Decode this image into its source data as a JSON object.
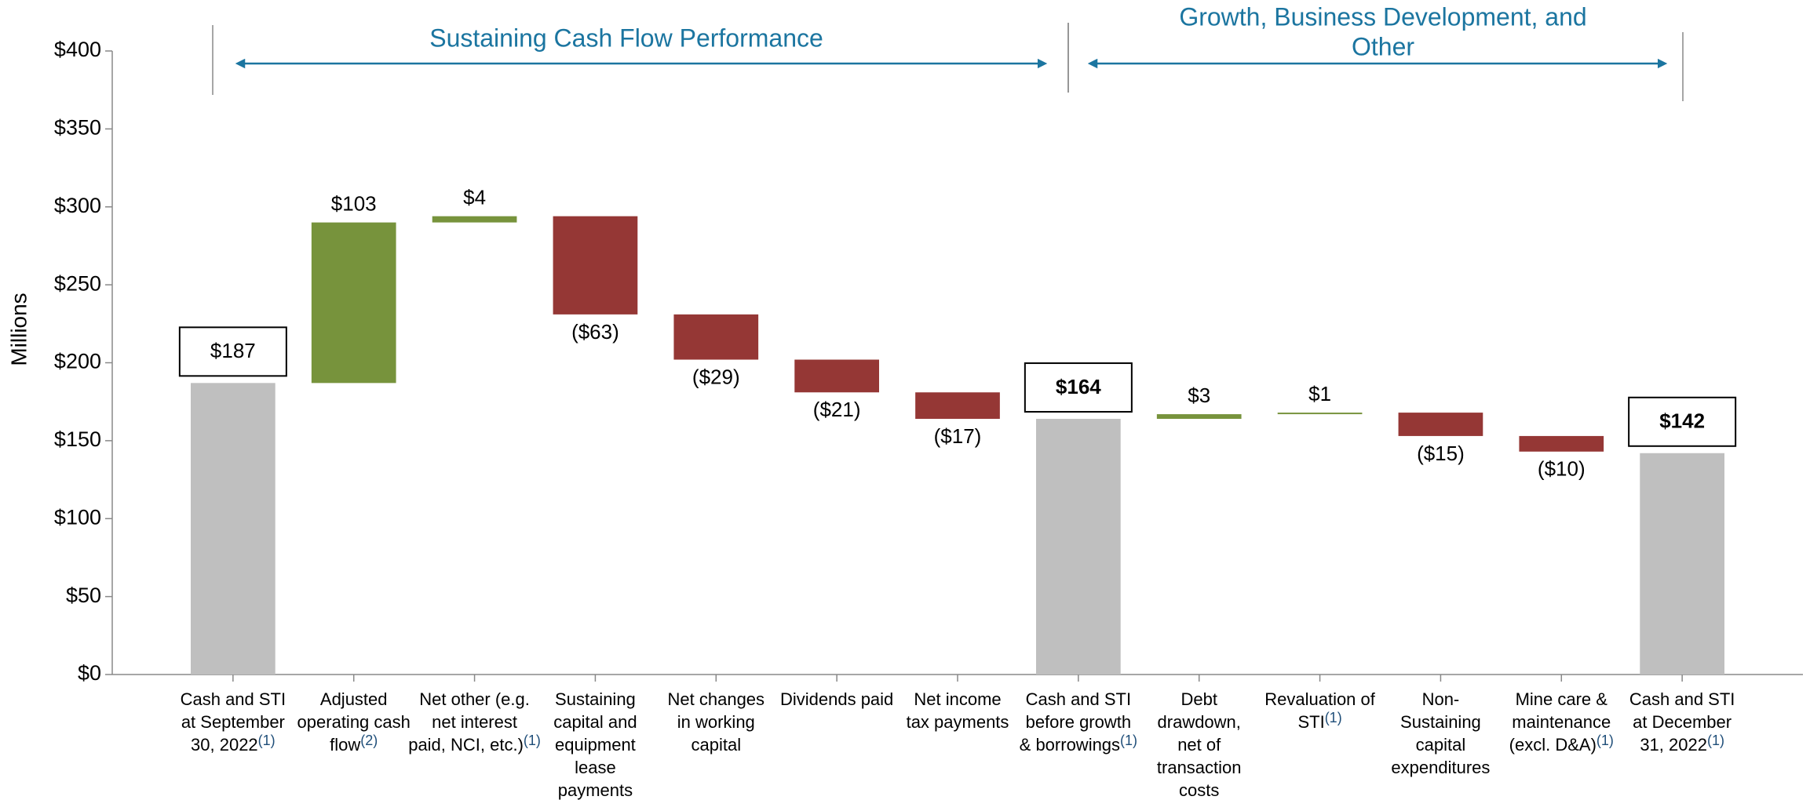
{
  "chart_data": {
    "type": "waterfall",
    "y_label": "Millions",
    "categories": [
      [
        "Cash and STI",
        "at September",
        "30, 2022"
      ],
      [
        "Adjusted",
        "operating cash",
        "flow"
      ],
      [
        "Net other (e.g.",
        "net interest",
        "paid, NCI, etc.)"
      ],
      [
        "Sustaining",
        "capital and",
        "equipment",
        "lease",
        "payments"
      ],
      [
        "Net changes",
        "in working",
        "capital"
      ],
      [
        "Dividends paid"
      ],
      [
        "Net income",
        "tax payments"
      ],
      [
        "Cash and STI",
        "before growth",
        "& borrowings"
      ],
      [
        "Debt",
        "drawdown,",
        "net of",
        "transaction",
        "costs"
      ],
      [
        "Revaluation of",
        "STI"
      ],
      [
        "Non-",
        "Sustaining",
        "capital",
        "expenditures"
      ],
      [
        "Mine care &",
        "maintenance",
        "(excl. D&A)"
      ],
      [
        "Cash and STI",
        "at December",
        "31, 2022"
      ]
    ],
    "footnotes": [
      "(1)",
      "(2)",
      "(1)",
      null,
      null,
      null,
      null,
      "(1)",
      null,
      "(1)",
      null,
      "(1)",
      "(1)"
    ],
    "measures": [
      "total",
      "relative",
      "relative",
      "relative",
      "relative",
      "relative",
      "relative",
      "total",
      "relative",
      "relative",
      "relative",
      "relative",
      "total"
    ],
    "values": [
      187,
      103,
      4,
      -63,
      -29,
      -21,
      -17,
      164,
      3,
      1,
      -15,
      -10,
      142
    ],
    "value_labels": [
      "$187",
      "$103",
      "$4",
      "($63)",
      "($29)",
      "($21)",
      "($17)",
      "$164",
      "$3",
      "$1",
      "($15)",
      "($10)",
      "$142"
    ],
    "bold_labels": [
      false,
      false,
      false,
      false,
      false,
      false,
      false,
      true,
      false,
      false,
      false,
      false,
      true
    ],
    "colors": {
      "total": "#bfbfbf",
      "increase": "#77933c",
      "decrease": "#953735"
    },
    "ylim": [
      0,
      400
    ],
    "yticks": [
      {
        "value": 0,
        "label": "$0"
      },
      {
        "value": 50,
        "label": "$50"
      },
      {
        "value": 100,
        "label": "$100"
      },
      {
        "value": 150,
        "label": "$150"
      },
      {
        "value": 200,
        "label": "$200"
      },
      {
        "value": 250,
        "label": "$250"
      },
      {
        "value": 300,
        "label": "$300"
      },
      {
        "value": 350,
        "label": "$350"
      },
      {
        "value": 400,
        "label": "$400"
      }
    ],
    "grid": false,
    "annotations": [
      {
        "lines": [
          "Sustaining Cash Flow Performance"
        ]
      },
      {
        "lines": [
          "Growth, Business Development, and",
          "Other"
        ]
      }
    ],
    "annotation_color": "#1b75a0"
  }
}
